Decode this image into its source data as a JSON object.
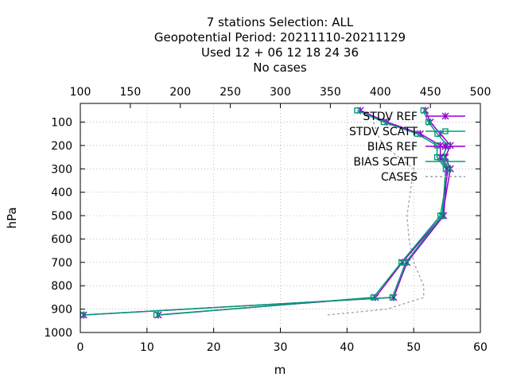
{
  "chart_data": {
    "type": "line",
    "title_lines": [
      "7 stations Selection: ALL",
      "Geopotential  Period: 20211110-20211129",
      "Used  12 + 06 12 18 24 36",
      "No cases"
    ],
    "xlabel": "m",
    "ylabel": "hPa",
    "xlim": [
      0,
      60
    ],
    "x2lim": [
      100,
      500
    ],
    "ylim": [
      1000,
      20
    ],
    "x_ticks": [
      "0",
      "10",
      "20",
      "30",
      "40",
      "50",
      "60"
    ],
    "x2_ticks": [
      "100",
      "150",
      "200",
      "250",
      "300",
      "350",
      "400",
      "450",
      "500"
    ],
    "y_ticks": [
      "100",
      "200",
      "300",
      "400",
      "500",
      "600",
      "700",
      "800",
      "900",
      "1000"
    ],
    "grid": true,
    "legend_position": "top-right",
    "levels": [
      50,
      100,
      150,
      200,
      250,
      300,
      500,
      700,
      850,
      925
    ],
    "series": [
      {
        "name": "STDV REF",
        "axis": "x2",
        "color": "#9400d3",
        "marker": "x",
        "values": [
          445,
          450,
          460,
          470,
          465,
          470,
          462,
          422,
          395,
          178
        ]
      },
      {
        "name": "STDV SCATT",
        "axis": "x2",
        "color": "#009e73",
        "marker": "square",
        "values": [
          443,
          448,
          457,
          467,
          462,
          468,
          460,
          421,
          393,
          176
        ]
      },
      {
        "name": "BIAS REF",
        "axis": "x",
        "color": "#9400d3",
        "marker": "x",
        "values": [
          42,
          46,
          51,
          54,
          54,
          55,
          54.5,
          49,
          47,
          0.5
        ]
      },
      {
        "name": "BIAS SCATT",
        "axis": "x",
        "color": "#009e73",
        "marker": "square",
        "values": [
          41.5,
          45.5,
          50.5,
          53.5,
          53.5,
          54.8,
          54.3,
          48.8,
          46.8,
          0.4
        ]
      },
      {
        "name": "CASES",
        "axis": "x",
        "color": "#a0a0a0",
        "marker": "none",
        "dashed": true,
        "levels": [
          100,
          150,
          200,
          300,
          400,
          500,
          600,
          700,
          800,
          850,
          900,
          925
        ],
        "values": [
          44,
          44.5,
          45.5,
          50,
          49.5,
          49,
          49.3,
          50,
          51.5,
          51.5,
          46,
          37
        ]
      }
    ]
  }
}
